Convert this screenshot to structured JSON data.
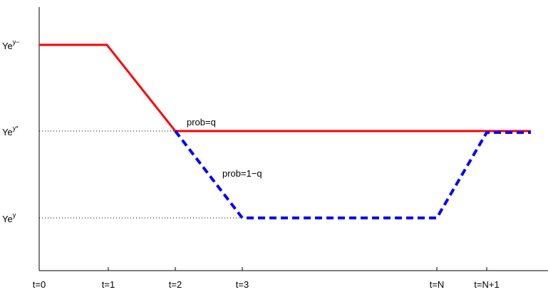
{
  "y_labels": [
    {
      "base": "Ye",
      "sup": "y−"
    },
    {
      "base": "Ye",
      "sup": "y*"
    },
    {
      "base": "Ye",
      "sup": "y"
    }
  ],
  "x_labels": [
    "t=0",
    "t=1",
    "t=2",
    "t=3",
    "t=N",
    "t=N+1"
  ],
  "annotations": [
    "prob=q",
    "prob=1−q"
  ]
}
